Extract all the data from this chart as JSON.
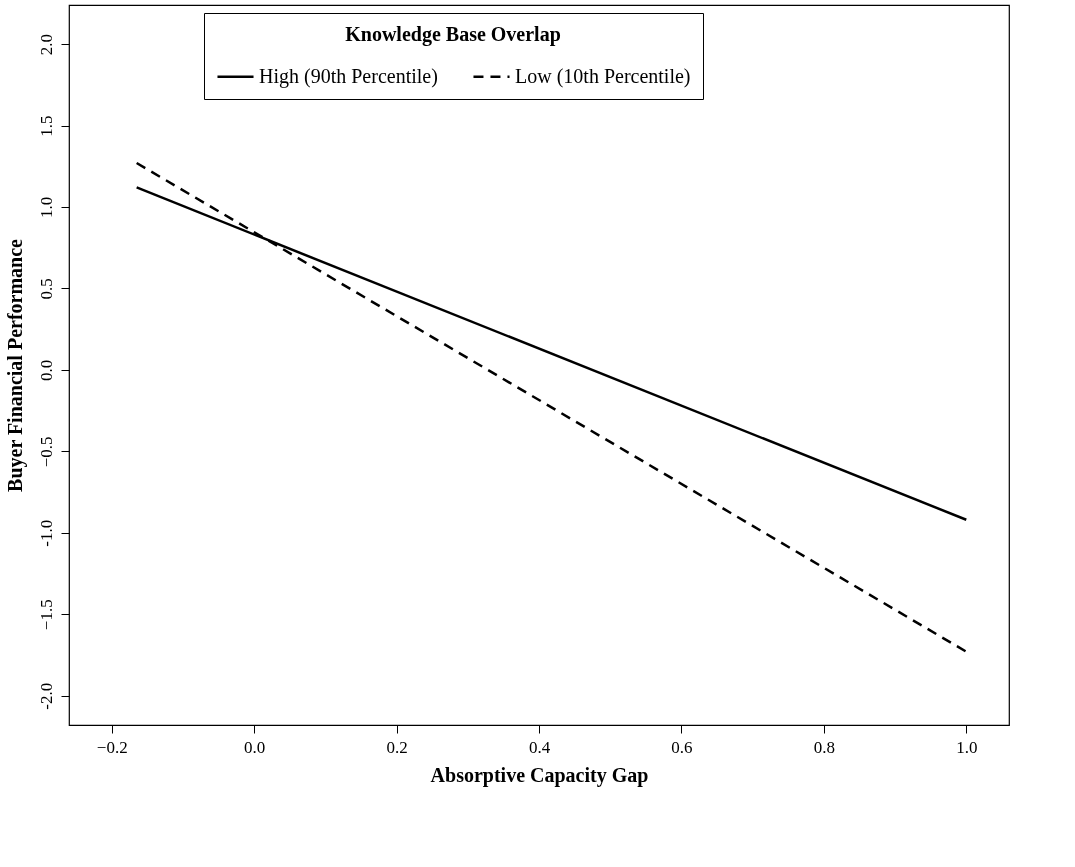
{
  "chart_data": {
    "type": "line",
    "xlabel": "Absorptive Capacity Gap",
    "ylabel": "Buyer Financial Performance",
    "legend_title": "Knowledge Base Overlap",
    "legend": "top",
    "grid": false,
    "marker": "none",
    "xlim": [
      -0.26,
      1.06
    ],
    "xticks": [
      -0.2,
      {
        "value": 0,
        "label": "0.0"
      },
      0.2,
      0.4,
      0.6,
      0.8,
      {
        "value": 1,
        "label": "1.0"
      }
    ],
    "ylim": [
      -2.18,
      2.24
    ],
    "yticks": [
      {
        "value": -2,
        "label": "-2.0"
      },
      -1.5,
      {
        "value": -1,
        "label": "-1.0"
      },
      -0.5,
      {
        "value": 0,
        "label": "0.0"
      },
      0.5,
      {
        "value": 1,
        "label": "1.0"
      },
      1.5,
      {
        "value": 2,
        "label": "2.0"
      }
    ],
    "x": [
      -0.165,
      1.0
    ],
    "series": [
      {
        "name": "High (90th Percentile)",
        "color": "#000000",
        "line_style": "solid",
        "values": [
          1.12,
          -0.92
        ]
      },
      {
        "name": "Low (10th Percentile)",
        "color": "#000000",
        "line_style": "dashed",
        "values": [
          1.27,
          -1.73
        ]
      }
    ]
  }
}
